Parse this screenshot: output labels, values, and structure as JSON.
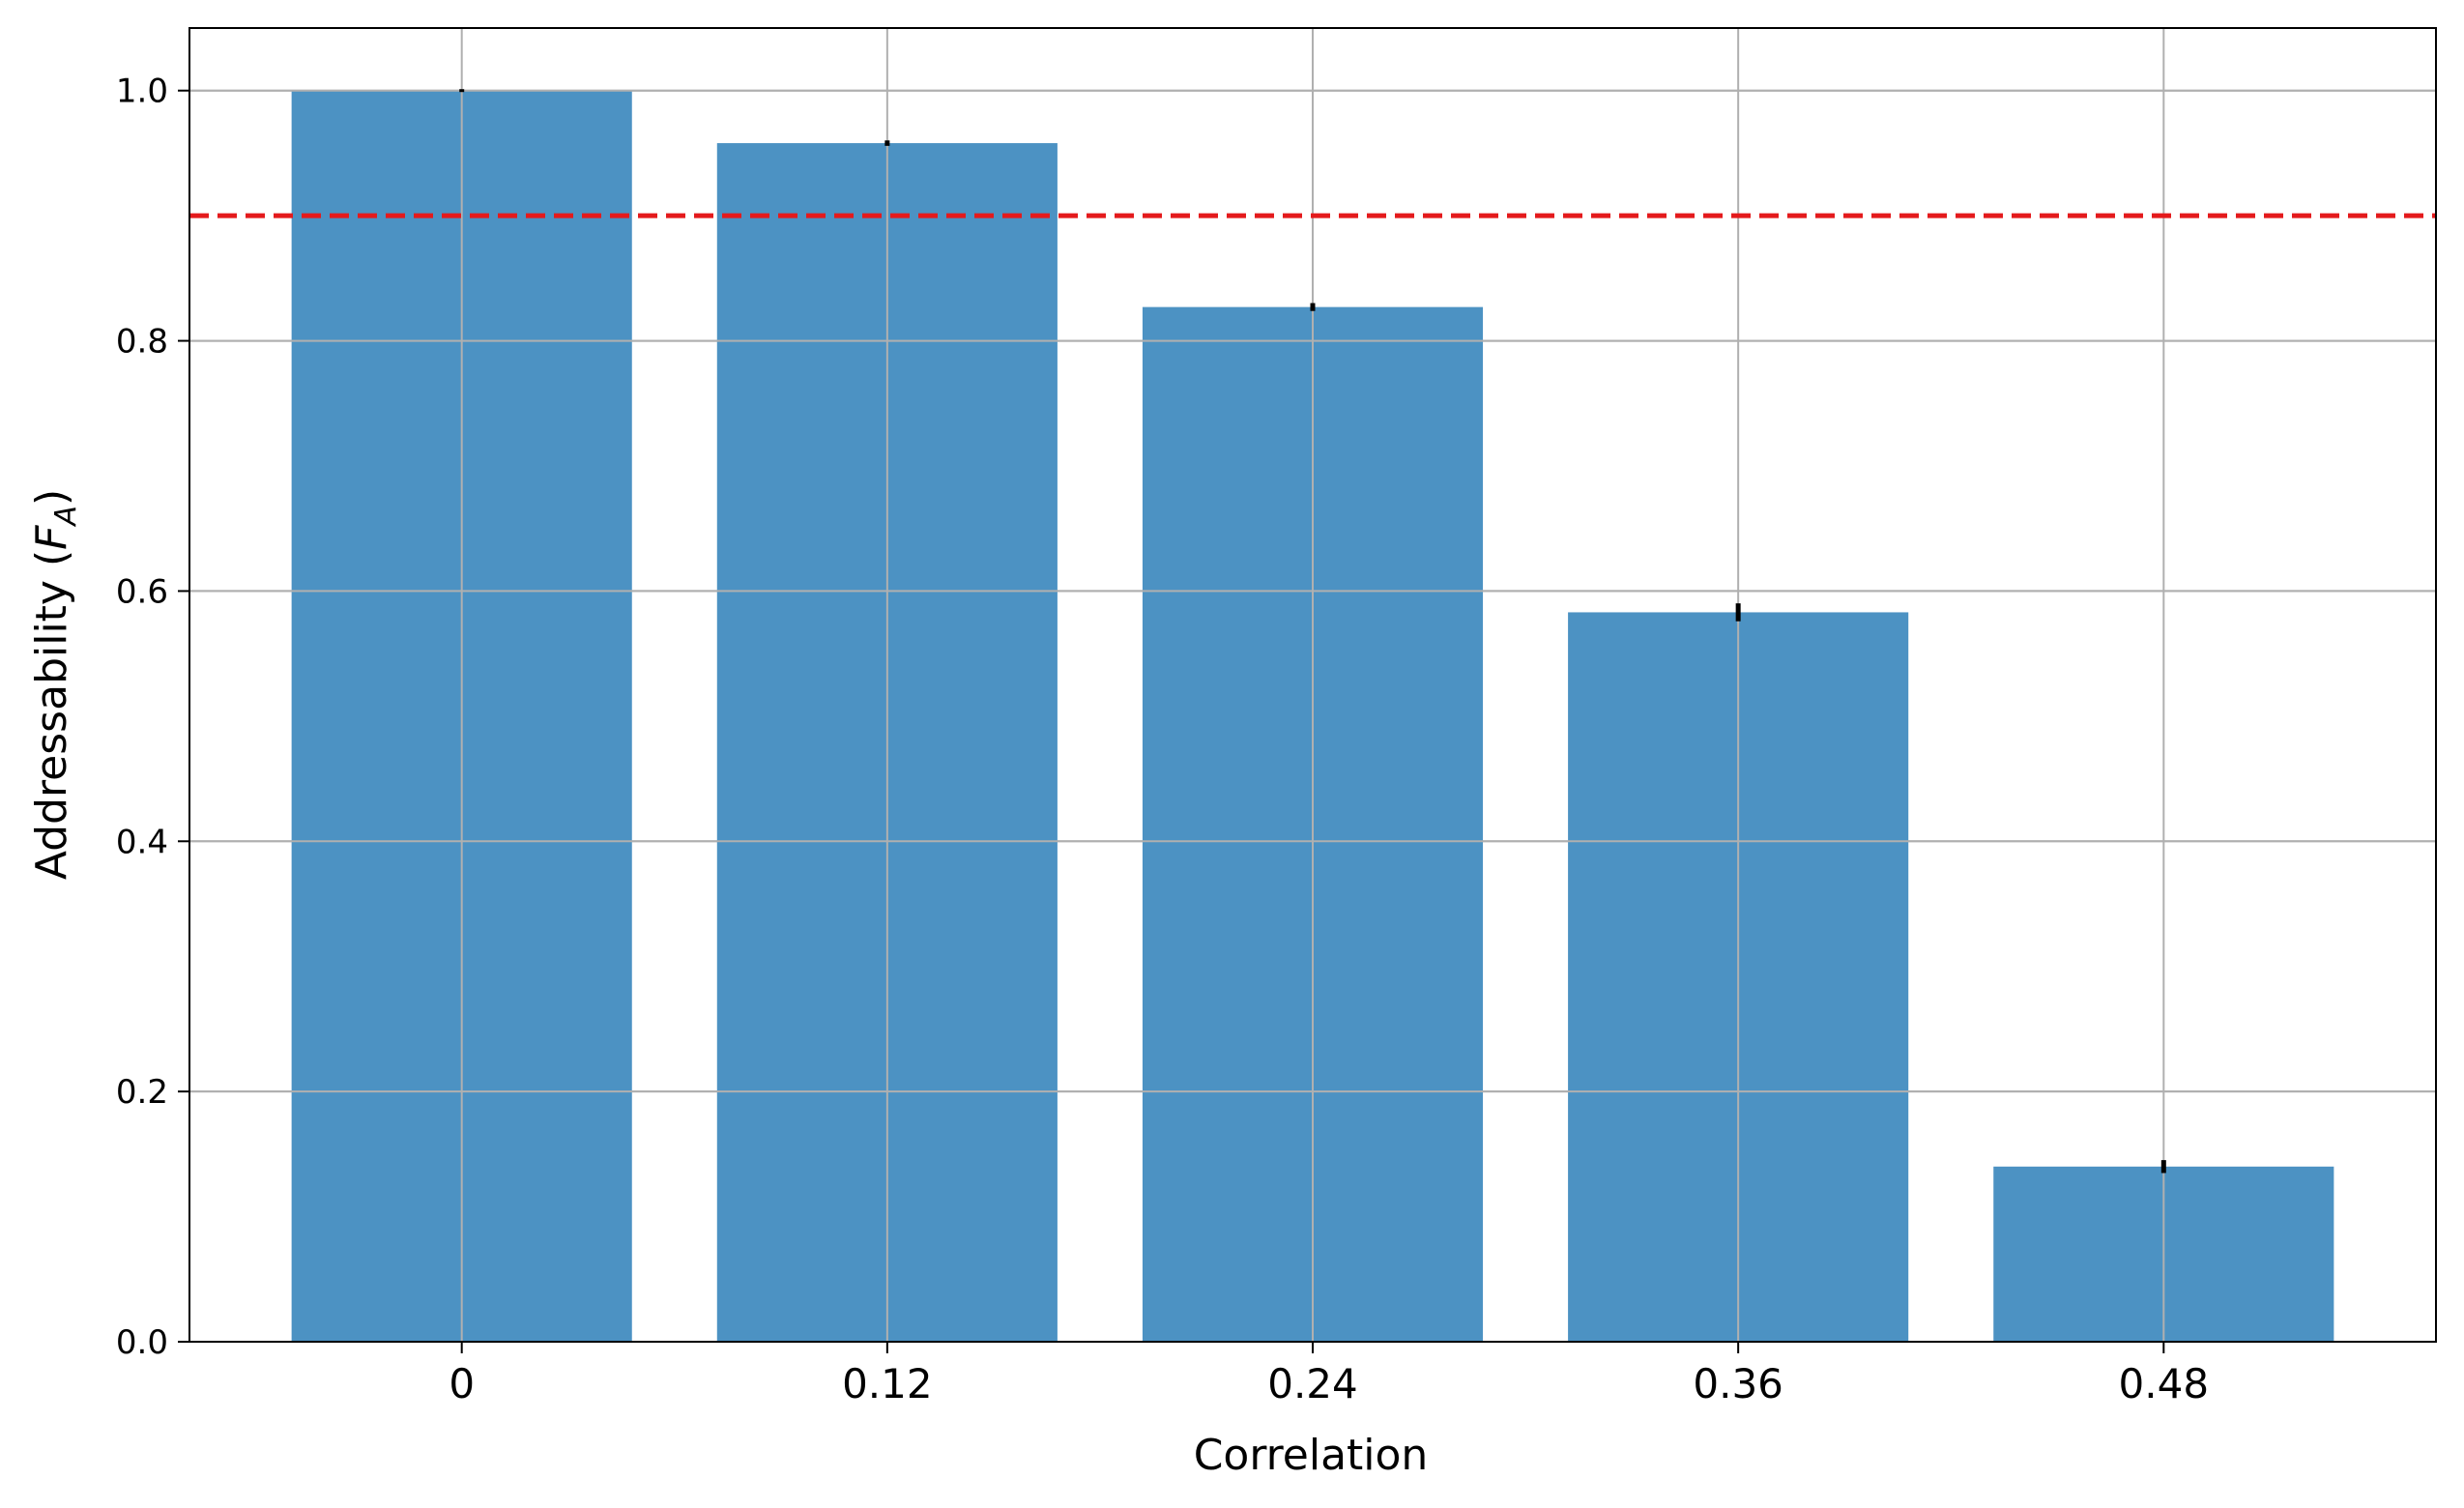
{
  "chart_data": {
    "type": "bar",
    "categories": [
      "0",
      "0.12",
      "0.24",
      "0.36",
      "0.48"
    ],
    "values": [
      1.0,
      0.958,
      0.827,
      0.583,
      0.14
    ],
    "errors": [
      0.0,
      0.001,
      0.002,
      0.006,
      0.004
    ],
    "title": "",
    "xlabel": "Correlation",
    "ylabel_main": "Addressability (",
    "ylabel_var": "F",
    "ylabel_sub": "A",
    "ylabel_close": ")",
    "ylim": [
      0,
      1.05
    ],
    "yticks": [
      0.0,
      0.2,
      0.4,
      0.6,
      0.8,
      1.0
    ],
    "ytick_labels": [
      "0.0",
      "0.2",
      "0.4",
      "0.6",
      "0.8",
      "1.0"
    ],
    "reference_line": {
      "y": 0.9,
      "style": "dashed",
      "color": "#e41a1c"
    },
    "grid": true,
    "colors": {
      "bar": "#4c92c3",
      "grid": "#b0b0b0",
      "axis": "#000000",
      "error": "#000000"
    }
  }
}
